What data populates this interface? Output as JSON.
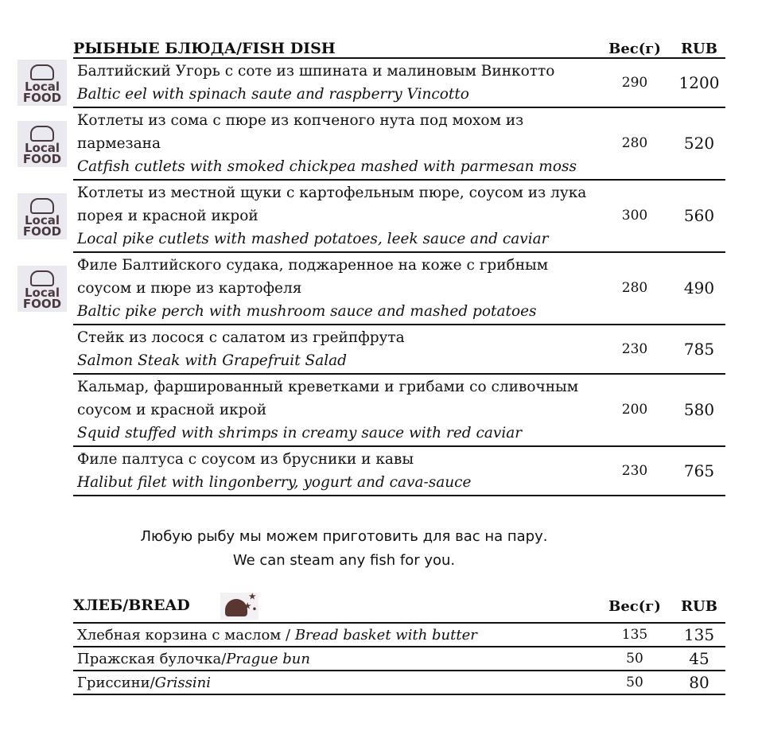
{
  "fish": {
    "title": "РЫБНЫЕ БЛЮДА/FISH DISH",
    "weight_header": "Вес(г)",
    "price_header": "RUB",
    "logo_text": "Local FOOD",
    "items": [
      {
        "ru": "Балтийский Угорь с соте из шпината и малиновым Винкотто",
        "en": "Baltic eel with spinach saute and raspberry Vincotto",
        "weight": "290",
        "price": "1200",
        "local": true
      },
      {
        "ru": "Котлеты из сома с пюре из копченого нута под мохом из пармезана",
        "en": "Catfish cutlets  with smoked chickpea mashed with parmesan moss",
        "weight": "280",
        "price": "520",
        "local": true
      },
      {
        "ru": "Котлеты из местной щуки с картофельным пюре, соусом из лука порея и красной икрой",
        "en": "Local pike cutlets with mashed potatoes, leek sauce and caviar",
        "weight": "300",
        "price": "560",
        "local": true
      },
      {
        "ru": "Филе Балтийского судака, поджаренное на коже с грибным соусом и пюре из картофеля",
        "en": "Baltic pike perch with mushroom sauce and mashed potatoes",
        "weight": "280",
        "price": "490",
        "local": true
      },
      {
        "ru": "Стейк из лосося с салатом из грейпфрута",
        "en": "Salmon Steak with Grapefruit Salad",
        "weight": "230",
        "price": "785",
        "local": false
      },
      {
        "ru": "Кальмар, фаршированный креветками и грибами со сливочным соусом и красной икрой",
        "en": "Squid stuffed with shrimps in creamy sauce with red caviar",
        "weight": "200",
        "price": "580",
        "local": false
      },
      {
        "ru": "Филе палтуса с соусом из брусники и кавы",
        "en": "Halibut filet with lingonberry, yogurt and cava-sauce",
        "weight": "230",
        "price": "765",
        "local": false
      }
    ]
  },
  "note": {
    "ru": "Любую рыбу мы можем приготовить для вас на пару.",
    "en": "We can steam any fish for you."
  },
  "bread": {
    "title": "ХЛЕБ/BREAD",
    "icon": "moon-stars-icon",
    "weight_header": "Вес(г)",
    "price_header": "RUB",
    "items": [
      {
        "ru": "Хлебная корзина с маслом / ",
        "en": "Bread basket with butter",
        "weight": "135",
        "price": "135"
      },
      {
        "ru": "Пражская булочка/",
        "en": "Prague bun",
        "weight": "50",
        "price": "45"
      },
      {
        "ru": "Гриссини/",
        "en": "Grissini",
        "weight": "50",
        "price": "80"
      }
    ]
  }
}
